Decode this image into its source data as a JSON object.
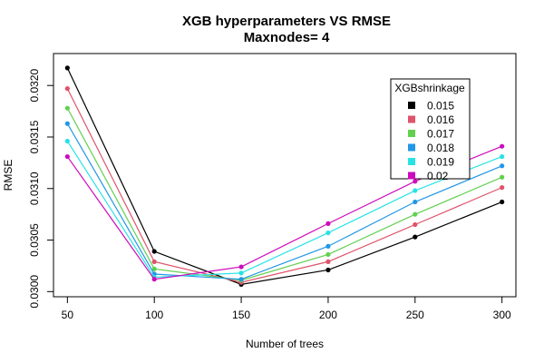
{
  "chart_data": {
    "type": "line",
    "title": "XGB hyperparameters VS RMSE",
    "subtitle": "Maxnodes= 4",
    "xlabel": "Number of trees",
    "ylabel": "RMSE",
    "x": [
      50,
      100,
      150,
      200,
      250,
      300
    ],
    "x_ticks": [
      50,
      100,
      150,
      200,
      250,
      300
    ],
    "y_ticks": [
      0.03,
      0.0305,
      0.031,
      0.0315,
      0.032
    ],
    "y_tick_labels": [
      "0.0300",
      "0.0305",
      "0.0310",
      "0.0315",
      "0.0320"
    ],
    "xlim": [
      42,
      308
    ],
    "ylim": [
      0.02995,
      0.03231
    ],
    "grid": false,
    "legend": {
      "title": "XGBshrinkage",
      "position": "top-right"
    },
    "series": [
      {
        "name": "0.015",
        "color": "#000000",
        "values": [
          0.03217,
          0.03039,
          0.03007,
          0.03021,
          0.03053,
          0.03087
        ]
      },
      {
        "name": "0.016",
        "color": "#DF536B",
        "values": [
          0.03197,
          0.03029,
          0.03009,
          0.03029,
          0.03065,
          0.03101
        ]
      },
      {
        "name": "0.017",
        "color": "#61D04F",
        "values": [
          0.03178,
          0.03022,
          0.03011,
          0.03036,
          0.03075,
          0.03111
        ]
      },
      {
        "name": "0.018",
        "color": "#2297E6",
        "values": [
          0.03163,
          0.03017,
          0.03012,
          0.03044,
          0.03087,
          0.03122
        ]
      },
      {
        "name": "0.019",
        "color": "#28E2E5",
        "values": [
          0.03146,
          0.03014,
          0.03018,
          0.03057,
          0.03098,
          0.03131
        ]
      },
      {
        "name": "0.02",
        "color": "#CD0BBC",
        "values": [
          0.03131,
          0.03012,
          0.03024,
          0.03066,
          0.03107,
          0.03141
        ]
      }
    ]
  }
}
